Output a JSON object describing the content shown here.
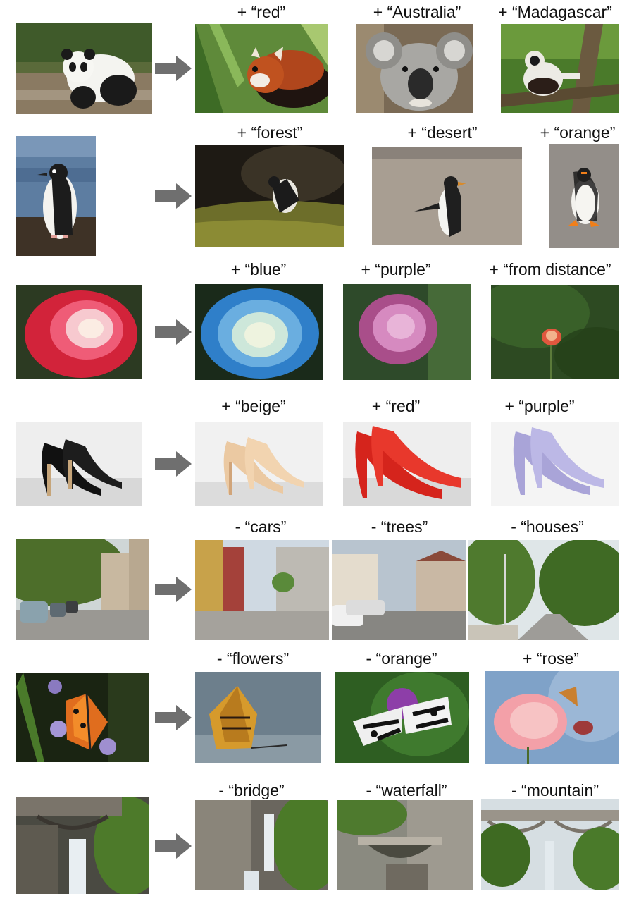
{
  "rows": [
    {
      "source": "panda",
      "edits": [
        {
          "label": "+ “red”",
          "subject": "red panda"
        },
        {
          "label": "+ “Australia”",
          "subject": "koala"
        },
        {
          "label": "+ “Madagascar”",
          "subject": "lemur"
        }
      ]
    },
    {
      "source": "penguin",
      "edits": [
        {
          "label": "+ “forest”",
          "subject": "penguin in forest"
        },
        {
          "label": "+ “desert”",
          "subject": "penguin on gravel"
        },
        {
          "label": "+ “orange”",
          "subject": "penguin with orange feet"
        }
      ]
    },
    {
      "source": "rose",
      "edits": [
        {
          "label": "+ “blue”",
          "subject": "blue rose"
        },
        {
          "label": "+ “purple”",
          "subject": "purple rose"
        },
        {
          "label": "+ “from distance”",
          "subject": "distant rose"
        }
      ]
    },
    {
      "source": "black heels",
      "edits": [
        {
          "label": "+ “beige”",
          "subject": "beige heels"
        },
        {
          "label": "+ “red”",
          "subject": "red heels"
        },
        {
          "label": "+ “purple”",
          "subject": "purple heels"
        }
      ]
    },
    {
      "source": "street with cars and trees",
      "edits": [
        {
          "label": "- “cars”",
          "subject": "street no cars"
        },
        {
          "label": "- “trees”",
          "subject": "street no trees"
        },
        {
          "label": "- “houses”",
          "subject": "road no houses"
        }
      ]
    },
    {
      "source": "butterfly on flowers",
      "edits": [
        {
          "label": "- “flowers”",
          "subject": "butterfly on water"
        },
        {
          "label": "- “orange”",
          "subject": "black and white butterfly"
        },
        {
          "label": "+ “rose”",
          "subject": "butterfly on rose"
        }
      ]
    },
    {
      "source": "waterfall with bridge",
      "edits": [
        {
          "label": "- “bridge”",
          "subject": "waterfall"
        },
        {
          "label": "- “waterfall”",
          "subject": "bridge in gorge"
        },
        {
          "label": "- “mountain”",
          "subject": "bridge over stream"
        }
      ]
    }
  ],
  "colors": {
    "arrow": "#6f6f6f"
  }
}
